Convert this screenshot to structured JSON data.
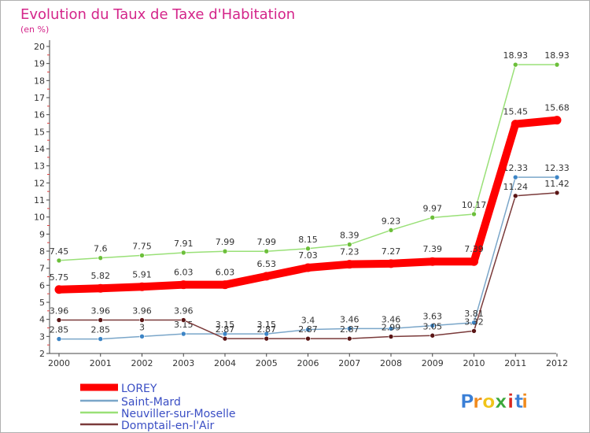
{
  "chart_data": {
    "type": "line",
    "title": "Evolution du Taux de Taxe d'Habitation",
    "subtitle": "(en %)",
    "x": [
      "2000",
      "2001",
      "2002",
      "2003",
      "2004",
      "2005",
      "2006",
      "2007",
      "2008",
      "2009",
      "2010",
      "2011",
      "2012"
    ],
    "yticks": [
      "2",
      "3",
      "4",
      "5",
      "6",
      "7",
      "8",
      "9",
      "10",
      "11",
      "12",
      "13",
      "14",
      "15",
      "16",
      "17",
      "18",
      "19",
      "20"
    ],
    "ylim": [
      2,
      20
    ],
    "grid": false,
    "legend_position": "bottom-left",
    "series": [
      {
        "name": "LOREY",
        "color": "#ff0000",
        "marker_color": "#ff0000",
        "values": [
          5.75,
          5.82,
          5.91,
          6.03,
          6.03,
          6.53,
          7.03,
          7.23,
          7.27,
          7.39,
          7.39,
          15.45,
          15.68
        ],
        "labels": [
          "5.75",
          "5.82",
          "5.91",
          "6.03",
          "6.03",
          "6.53",
          "7.03",
          "7.23",
          "7.27",
          "7.39",
          "7.39",
          "15.45",
          "15.68"
        ]
      },
      {
        "name": "Saint-Mard",
        "color": "#7aa6c9",
        "marker_color": "#3d85c6",
        "values": [
          2.85,
          2.85,
          3,
          3.15,
          3.15,
          3.15,
          3.4,
          3.46,
          3.46,
          3.63,
          3.81,
          12.33,
          12.33
        ],
        "labels": [
          "2.85",
          "2.85",
          "3",
          "3.15",
          "3.15",
          "3.15",
          "3.4",
          "3.46",
          "3.46",
          "3.63",
          "3.81",
          "12.33",
          "12.33"
        ]
      },
      {
        "name": "Neuviller-sur-Moselle",
        "color": "#99e077",
        "marker_color": "#6cbf3a",
        "values": [
          7.45,
          7.6,
          7.75,
          7.91,
          7.99,
          7.99,
          8.15,
          8.39,
          9.23,
          9.97,
          10.17,
          18.93,
          18.93
        ],
        "labels": [
          "7.45",
          "7.6",
          "7.75",
          "7.91",
          "7.99",
          "7.99",
          "8.15",
          "8.39",
          "9.23",
          "9.97",
          "10.17",
          "18.93",
          "18.93"
        ]
      },
      {
        "name": "Domptail-en-l'Air",
        "color": "#7a3a3a",
        "marker_color": "#5a1515",
        "values": [
          3.96,
          3.96,
          3.96,
          3.96,
          2.87,
          2.87,
          2.87,
          2.87,
          2.99,
          3.05,
          3.32,
          11.24,
          11.42
        ],
        "labels": [
          "3.96",
          "3.96",
          "3.96",
          "3.96",
          "2.87",
          "2.87",
          "2.87",
          "2.87",
          "2.99",
          "3.05",
          "3.32",
          "11.24",
          "11.42"
        ]
      }
    ]
  },
  "logo": {
    "text": "Proxiti",
    "letters": [
      "P",
      "r",
      "o",
      "x",
      "i",
      "t",
      "i"
    ],
    "colors": [
      "#3a7fd6",
      "#f08a1c",
      "#f0c419",
      "#3aa83a",
      "#d9281f",
      "#3a7fd6",
      "#f08a1c"
    ]
  }
}
